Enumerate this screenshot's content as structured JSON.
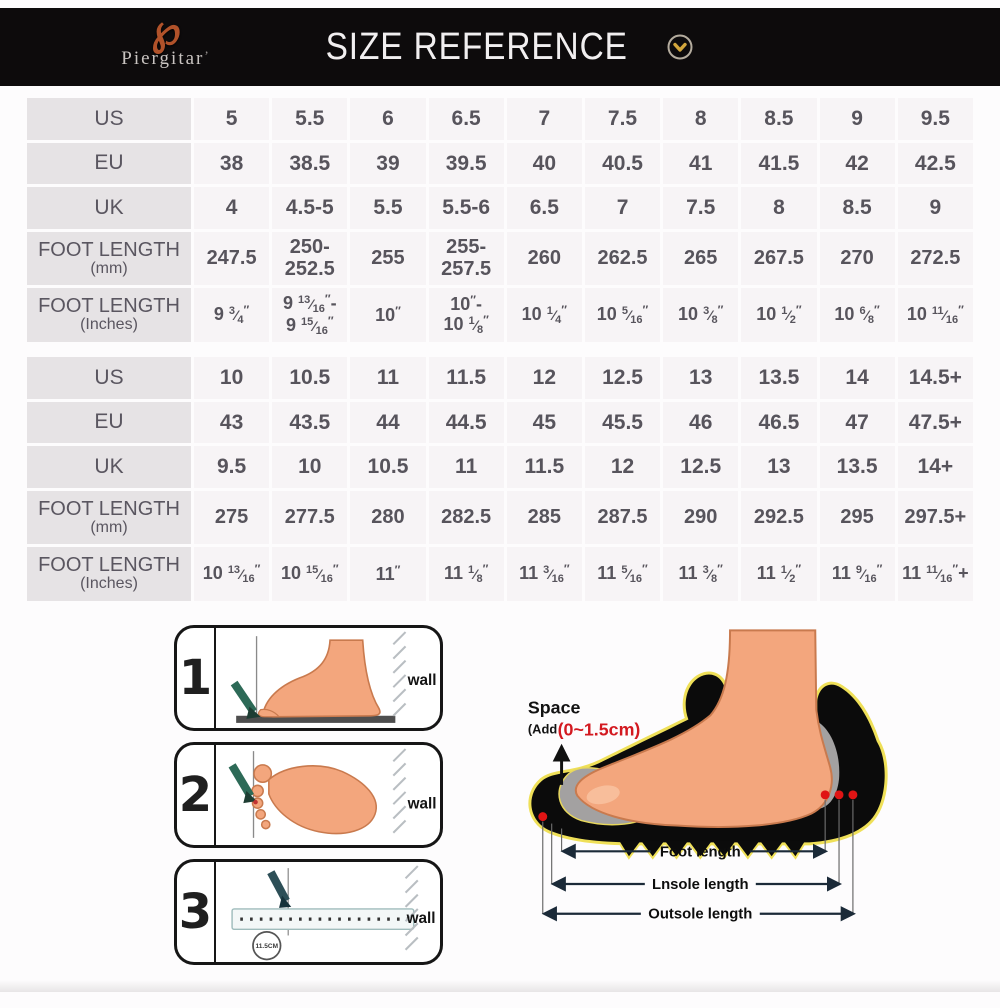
{
  "header": {
    "brand_glyph": "℘",
    "brand": "Piergitar",
    "brand_mark": "’",
    "title": "SIZE REFERENCE",
    "colors": {
      "bar_bg": "#0d0b0c",
      "title": "#f1eff0",
      "logo": "#b0522a",
      "chevron_gold": "#d2a63c"
    }
  },
  "tables": [
    {
      "rows": [
        {
          "id": "us",
          "label": "US",
          "values": [
            "5",
            "5.5",
            "6",
            "6.5",
            "7",
            "7.5",
            "8",
            "8.5",
            "9",
            "9.5"
          ]
        },
        {
          "id": "eu",
          "label": "EU",
          "values": [
            "38",
            "38.5",
            "39",
            "39.5",
            "40",
            "40.5",
            "41",
            "41.5",
            "42",
            "42.5"
          ]
        },
        {
          "id": "uk",
          "label": "UK",
          "values": [
            "4",
            "4.5-5",
            "5.5",
            "5.5-6",
            "6.5",
            "7",
            "7.5",
            "8",
            "8.5",
            "9"
          ]
        },
        {
          "id": "foot-length-mm",
          "label": "FOOT LENGTH",
          "sublabel": "(mm)",
          "values": [
            "247.5",
            "250-\n252.5",
            "255",
            "255-\n257.5",
            "260",
            "262.5",
            "265",
            "267.5",
            "270",
            "272.5"
          ]
        },
        {
          "id": "foot-length-inches",
          "label": "FOOT LENGTH",
          "sublabel": "(Inches)",
          "values": [
            "9 3/4″",
            "9 13/16″-\n9 15/16″",
            "10″",
            "10″-\n10 1/8″",
            "10 1/4″",
            "10 5/16″",
            "10 3/8″",
            "10 1/2″",
            "10 6/8″",
            "10 11/16″"
          ]
        }
      ]
    },
    {
      "rows": [
        {
          "id": "us",
          "label": "US",
          "values": [
            "10",
            "10.5",
            "11",
            "11.5",
            "12",
            "12.5",
            "13",
            "13.5",
            "14",
            "14.5+"
          ]
        },
        {
          "id": "eu",
          "label": "EU",
          "values": [
            "43",
            "43.5",
            "44",
            "44.5",
            "45",
            "45.5",
            "46",
            "46.5",
            "47",
            "47.5+"
          ]
        },
        {
          "id": "uk",
          "label": "UK",
          "values": [
            "9.5",
            "10",
            "10.5",
            "11",
            "11.5",
            "12",
            "12.5",
            "13",
            "13.5",
            "14+"
          ]
        },
        {
          "id": "foot-length-mm",
          "label": "FOOT LENGTH",
          "sublabel": "(mm)",
          "values": [
            "275",
            "277.5",
            "280",
            "282.5",
            "285",
            "287.5",
            "290",
            "292.5",
            "295",
            "297.5+"
          ]
        },
        {
          "id": "foot-length-inches",
          "label": "FOOT LENGTH",
          "sublabel": "(Inches)",
          "values": [
            "10 13/16″",
            "10 15/16″",
            "11″",
            "11 1/8″",
            "11 3/16″",
            "11 5/16″",
            "11 3/8″",
            "11 1/2″",
            "11 9/16″",
            "11 11/16″+"
          ]
        }
      ]
    }
  ],
  "guide": {
    "steps": [
      {
        "number": "1",
        "wall_label": "wall"
      },
      {
        "number": "2",
        "wall_label": "wall"
      },
      {
        "number": "3",
        "wall_label": "wall",
        "ruler_badge": "11.5CM"
      }
    ],
    "diagram": {
      "space_title": "Space",
      "space_prefix": "(Add",
      "space_value": "(0~1.5cm)",
      "measurements": [
        "Foot length",
        "Lnsole length",
        "Outsole length"
      ],
      "colors": {
        "skin": "#f3a67d",
        "shoe": "#0b0b0b",
        "insole": "#a3a1a1",
        "glow": "#efe058",
        "dot_red": "#e01414",
        "space_red": "#d31920"
      }
    }
  }
}
